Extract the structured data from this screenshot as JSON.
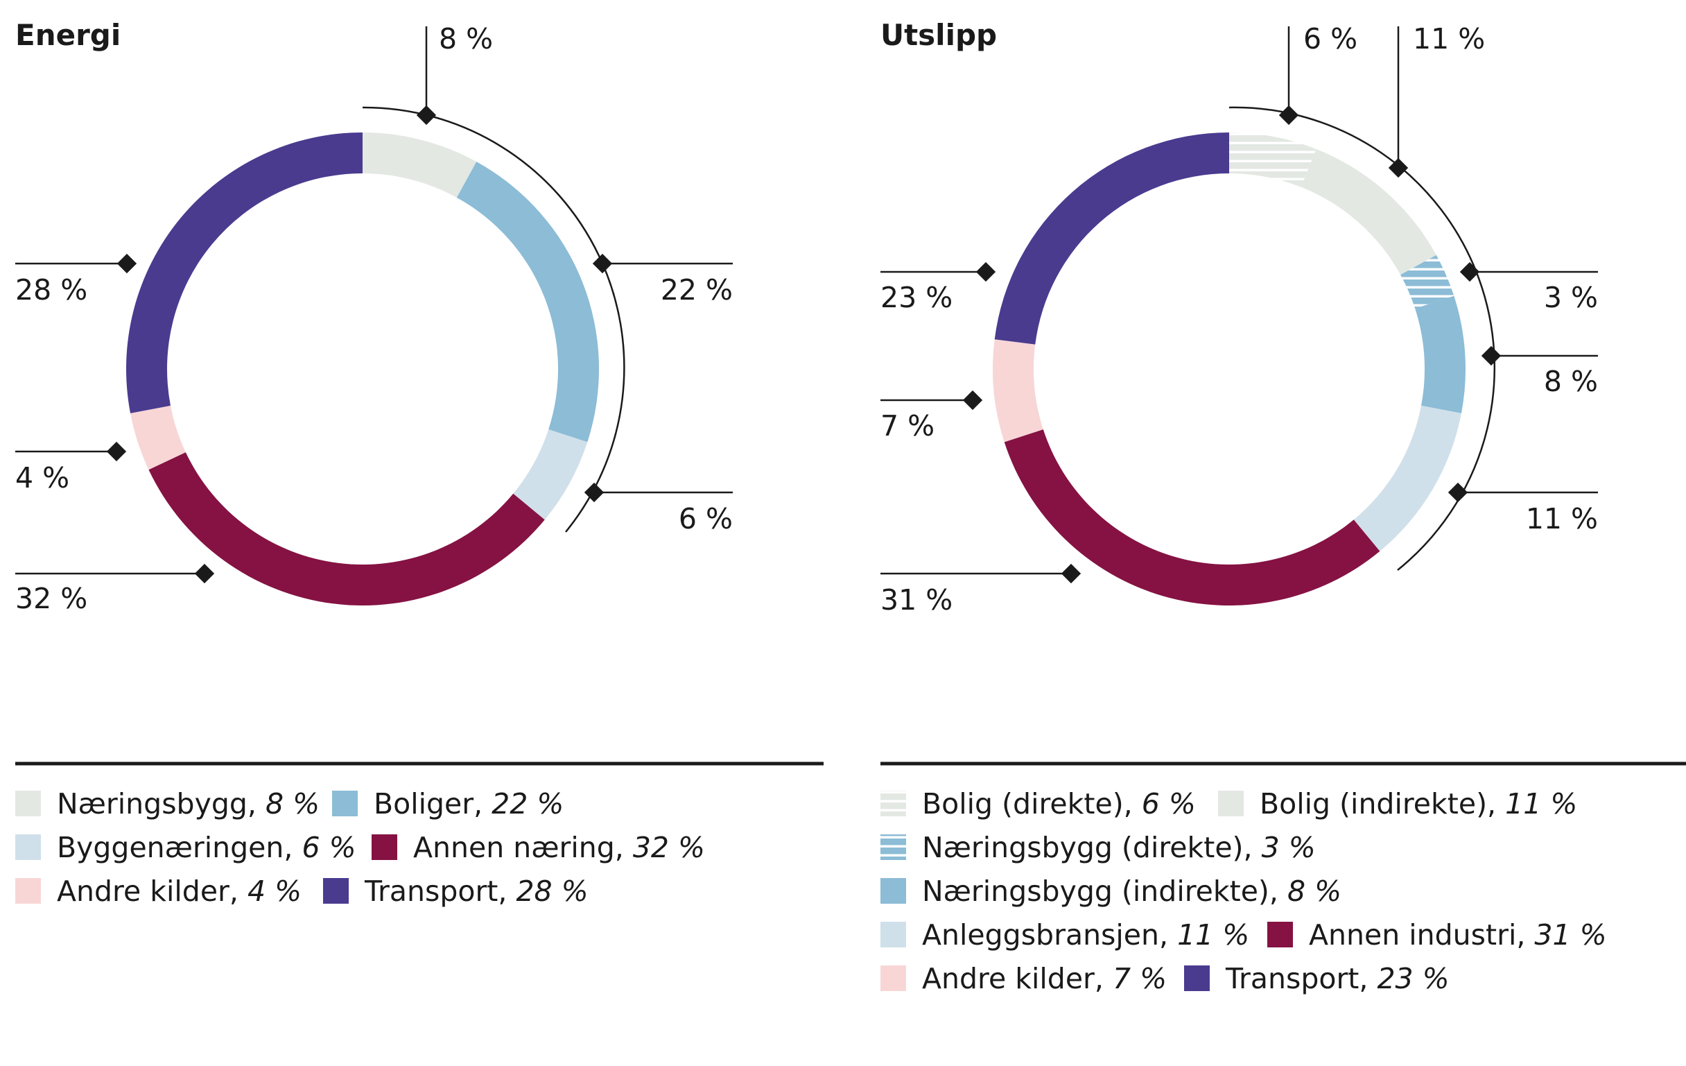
{
  "colors": {
    "naeringsbygg": "#e3e8e3",
    "boliger": "#8cbcd6",
    "byggenaeringen": "#d0e0ea",
    "annen": "#851243",
    "andre": "#f8d6d6",
    "transport": "#4a3b8f",
    "text": "#1a1a1a"
  },
  "chart_data": [
    {
      "type": "pie",
      "title": "Energi",
      "slices": [
        {
          "name": "Næringsbygg",
          "value": 8,
          "label": "8 %",
          "color_key": "naeringsbygg",
          "pattern": "none"
        },
        {
          "name": "Boliger",
          "value": 22,
          "label": "22 %",
          "color_key": "boliger",
          "pattern": "none"
        },
        {
          "name": "Byggenæringen",
          "value": 6,
          "label": "6 %",
          "color_key": "byggenaeringen",
          "pattern": "none"
        },
        {
          "name": "Annen næring",
          "value": 32,
          "label": "32 %",
          "color_key": "annen",
          "pattern": "none"
        },
        {
          "name": "Andre kilder",
          "value": 4,
          "label": "4 %",
          "color_key": "andre",
          "pattern": "none"
        },
        {
          "name": "Transport",
          "value": 28,
          "label": "28 %",
          "color_key": "transport",
          "pattern": "none"
        }
      ],
      "legend": [
        [
          {
            "name": "Næringsbygg,",
            "pct": "8 %",
            "color_key": "naeringsbygg",
            "pattern": "none"
          },
          {
            "name": "Boliger,",
            "pct": "22 %",
            "color_key": "boliger",
            "pattern": "none"
          }
        ],
        [
          {
            "name": "Byggenæringen,",
            "pct": "6 %",
            "color_key": "byggenaeringen",
            "pattern": "none"
          },
          {
            "name": "Annen næring,",
            "pct": "32 %",
            "color_key": "annen",
            "pattern": "none"
          }
        ],
        [
          {
            "name": "Andre kilder,",
            "pct": "4 %",
            "color_key": "andre",
            "pattern": "none"
          },
          {
            "name": "Transport,",
            "pct": "28 %",
            "color_key": "transport",
            "pattern": "none"
          }
        ]
      ]
    },
    {
      "type": "pie",
      "title": "Utslipp",
      "slices": [
        {
          "name": "Bolig (direkte)",
          "value": 6,
          "label": "6 %",
          "color_key": "naeringsbygg",
          "pattern": "lines"
        },
        {
          "name": "Bolig (indirekte)",
          "value": 11,
          "label": "11 %",
          "color_key": "naeringsbygg",
          "pattern": "none"
        },
        {
          "name": "Næringsbygg (direkte)",
          "value": 3,
          "label": "3 %",
          "color_key": "boliger",
          "pattern": "lines"
        },
        {
          "name": "Næringsbygg (indirekte)",
          "value": 8,
          "label": "8 %",
          "color_key": "boliger",
          "pattern": "none"
        },
        {
          "name": "Anleggsbransjen",
          "value": 11,
          "label": "11 %",
          "color_key": "byggenaeringen",
          "pattern": "none"
        },
        {
          "name": "Annen industri",
          "value": 31,
          "label": "31 %",
          "color_key": "annen",
          "pattern": "none"
        },
        {
          "name": "Andre kilder",
          "value": 7,
          "label": "7 %",
          "color_key": "andre",
          "pattern": "none"
        },
        {
          "name": "Transport",
          "value": 23,
          "label": "23 %",
          "color_key": "transport",
          "pattern": "none"
        }
      ],
      "legend": [
        [
          {
            "name": "Bolig (direkte),",
            "pct": "6 %",
            "color_key": "naeringsbygg",
            "pattern": "lines"
          },
          {
            "name": "Bolig (indirekte),",
            "pct": "11   %",
            "color_key": "naeringsbygg",
            "pattern": "none"
          }
        ],
        [
          {
            "name": "Næringsbygg (direkte),",
            "pct": "3 %",
            "color_key": "boliger",
            "pattern": "lines"
          }
        ],
        [
          {
            "name": "Næringsbygg (indirekte),",
            "pct": "8 %",
            "color_key": "boliger",
            "pattern": "none"
          }
        ],
        [
          {
            "name": "Anleggsbransjen,",
            "pct": "11 %",
            "color_key": "byggenaeringen",
            "pattern": "none"
          },
          {
            "name": "Annen industri,",
            "pct": "31 %",
            "color_key": "annen",
            "pattern": "none"
          }
        ],
        [
          {
            "name": "Andre kilder,",
            "pct": "7 %",
            "color_key": "andre",
            "pattern": "none"
          },
          {
            "name": "Transport,",
            "pct": "23 %",
            "color_key": "transport",
            "pattern": "none"
          }
        ]
      ]
    }
  ]
}
